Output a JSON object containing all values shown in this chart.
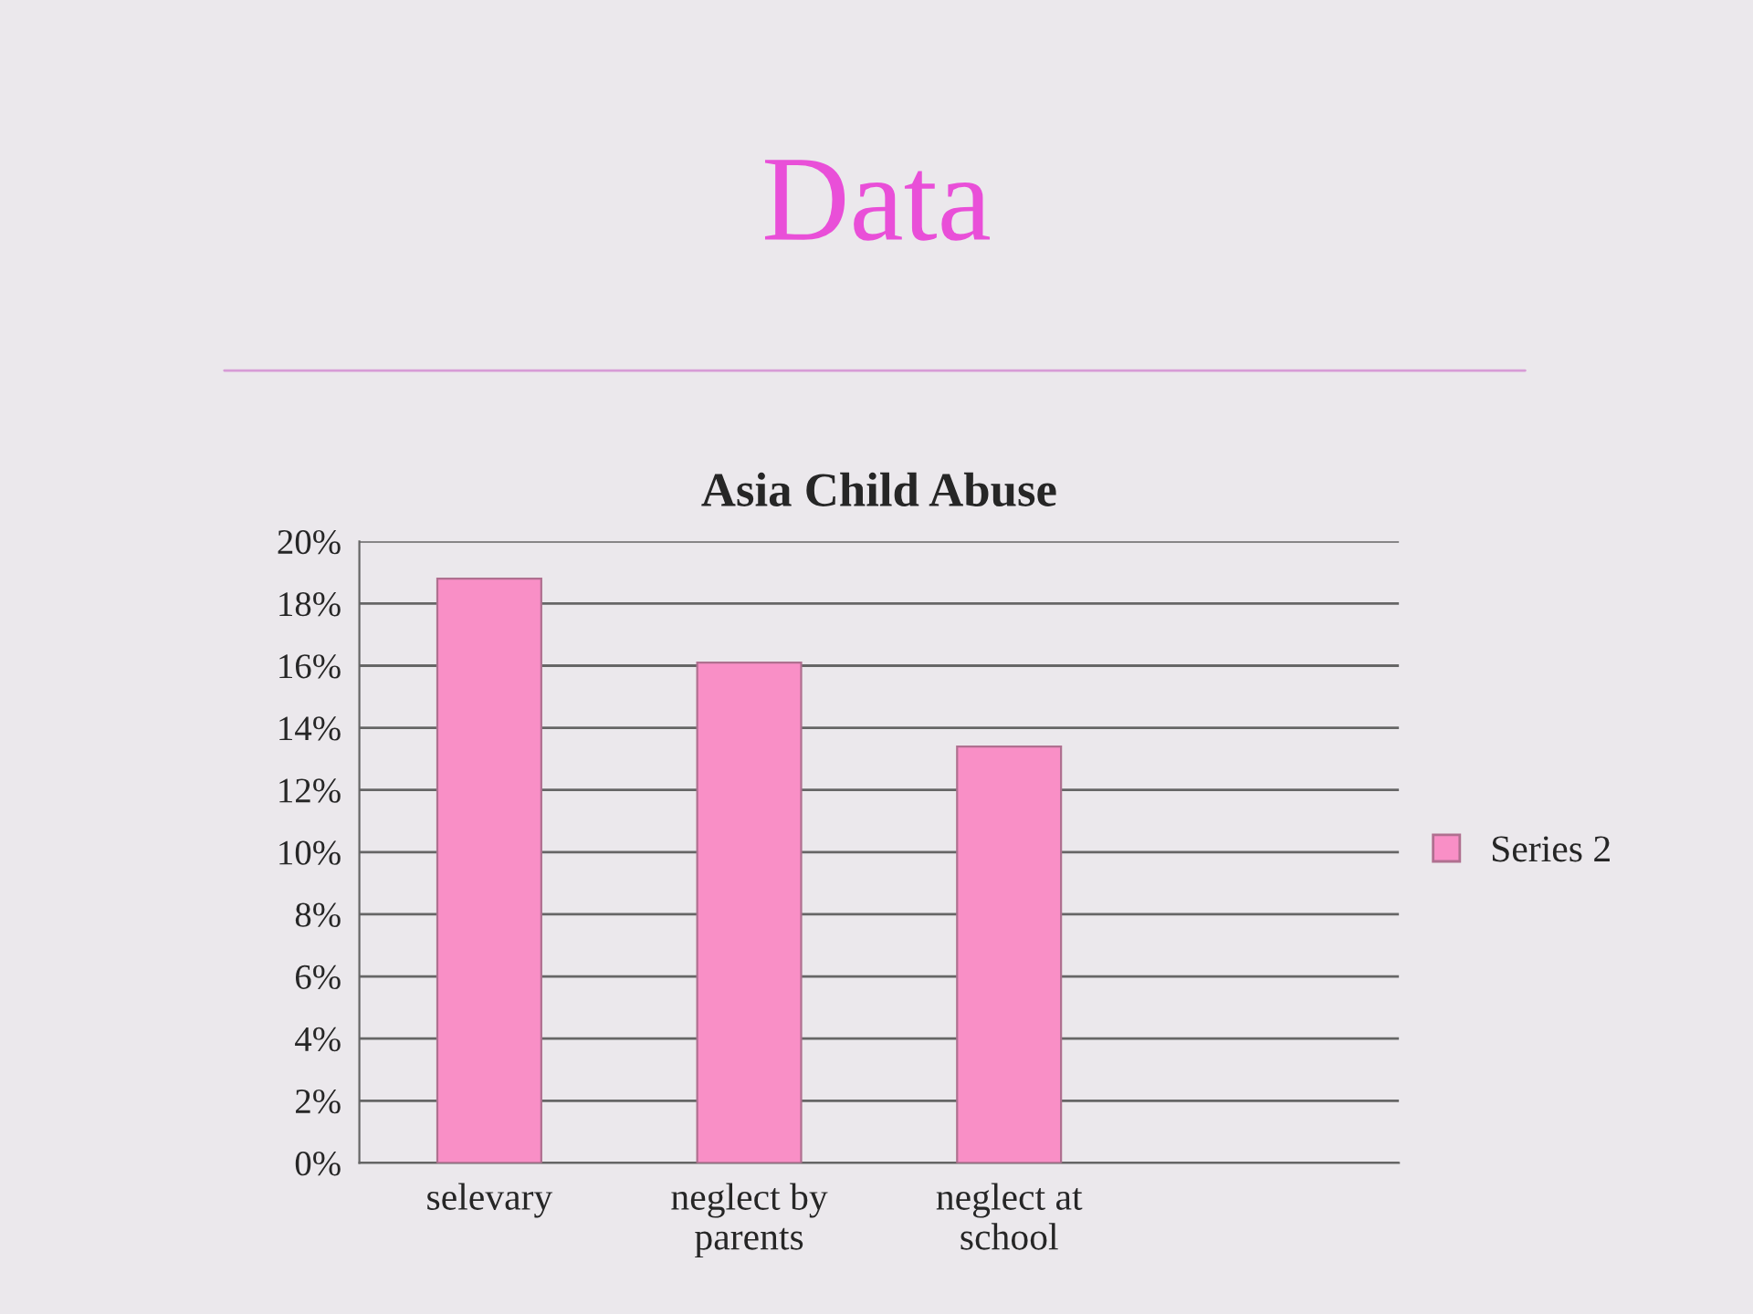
{
  "chart_data": {
    "type": "bar",
    "title": "Data",
    "subtitle": "Asia Child Abuse",
    "categories": [
      "selevary",
      "neglect by\nparents",
      "neglect at\nschool",
      null
    ],
    "series": [
      {
        "name": "Series 2",
        "color": "#f98fc6",
        "values": [
          18.8,
          16.1,
          13.4,
          null
        ]
      }
    ],
    "ylim": [
      0,
      20
    ],
    "yticks": [
      {
        "value": 0,
        "label": "0%"
      },
      {
        "value": 2,
        "label": "2%"
      },
      {
        "value": 4,
        "label": "4%"
      },
      {
        "value": 6,
        "label": "6%"
      },
      {
        "value": 8,
        "label": "8%"
      },
      {
        "value": 10,
        "label": "10%"
      },
      {
        "value": 12,
        "label": "12%"
      },
      {
        "value": 14,
        "label": "14%"
      },
      {
        "value": 16,
        "label": "16%"
      },
      {
        "value": 18,
        "label": "18%"
      },
      {
        "value": 20,
        "label": "20%"
      }
    ],
    "grid": "y",
    "legend": "right"
  }
}
